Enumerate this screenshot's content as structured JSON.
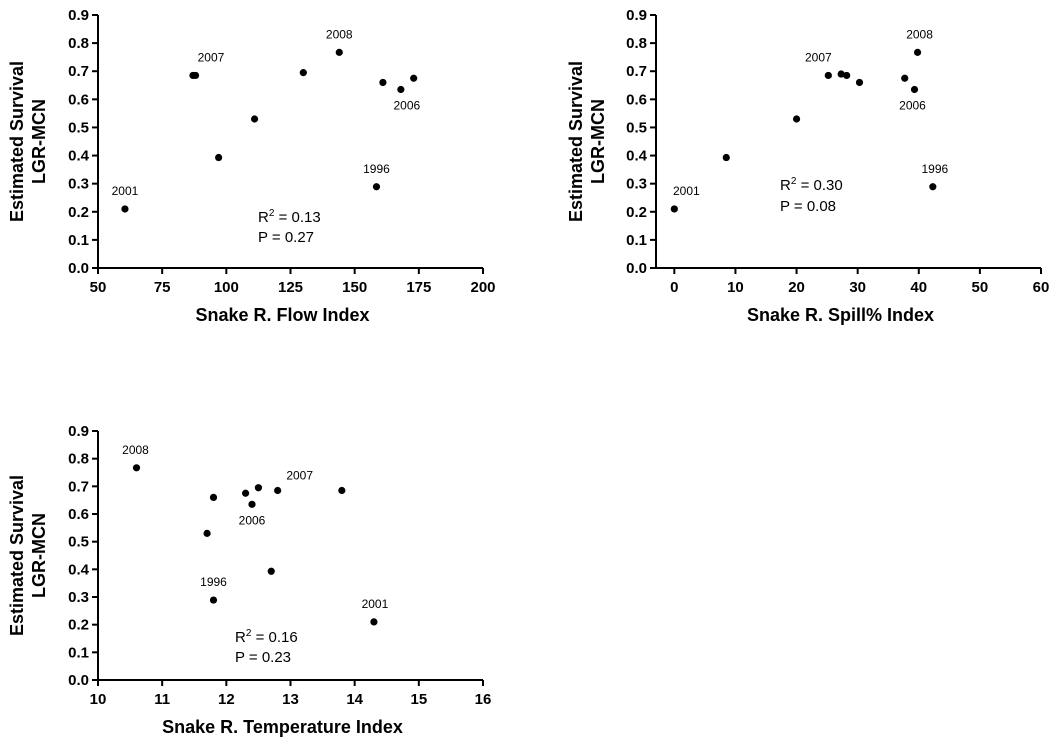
{
  "chart_data": [
    {
      "type": "scatter",
      "xlabel": "Snake R. Flow Index",
      "ylabel": [
        "Estimated Survival",
        "LGR-MCN"
      ],
      "xlim": [
        50,
        200
      ],
      "ylim": [
        0,
        0.9
      ],
      "xticks": [
        "50",
        "75",
        "100",
        "125",
        "150",
        "175",
        "200"
      ],
      "yticks": [
        "0.0",
        "0.1",
        "0.2",
        "0.3",
        "0.4",
        "0.5",
        "0.6",
        "0.7",
        "0.8",
        "0.9"
      ],
      "stats": {
        "r2_label": "R",
        "r2_sup": "2",
        "r2_value": " = 0.13",
        "p_text": "P = 0.27"
      },
      "points": [
        {
          "x": 60.5,
          "y": 0.21,
          "label": "2001"
        },
        {
          "x": 87,
          "y": 0.685,
          "label": "2007"
        },
        {
          "x": 88,
          "y": 0.685
        },
        {
          "x": 97,
          "y": 0.393
        },
        {
          "x": 111,
          "y": 0.53
        },
        {
          "x": 130,
          "y": 0.695
        },
        {
          "x": 144,
          "y": 0.767,
          "label": "2008"
        },
        {
          "x": 158.5,
          "y": 0.289,
          "label": "1996"
        },
        {
          "x": 161,
          "y": 0.66
        },
        {
          "x": 168,
          "y": 0.635,
          "label": "2006"
        },
        {
          "x": 173,
          "y": 0.675
        }
      ]
    },
    {
      "type": "scatter",
      "xlabel": "Snake R. Spill% Index",
      "ylabel": [
        "Estimated Survival",
        "LGR-MCN"
      ],
      "xlim": [
        -3,
        60
      ],
      "ylim": [
        0,
        0.9
      ],
      "xticks": [
        "0",
        "10",
        "20",
        "30",
        "40",
        "50",
        "60"
      ],
      "yticks": [
        "0.0",
        "0.1",
        "0.2",
        "0.3",
        "0.4",
        "0.5",
        "0.6",
        "0.7",
        "0.8",
        "0.9"
      ],
      "stats": {
        "r2_label": "R",
        "r2_sup": "2",
        "r2_value": " = 0.30",
        "p_text": "P = 0.08"
      },
      "points": [
        {
          "x": 0,
          "y": 0.21,
          "label": "2001"
        },
        {
          "x": 8.5,
          "y": 0.393
        },
        {
          "x": 20,
          "y": 0.53
        },
        {
          "x": 25.2,
          "y": 0.685,
          "label": "2007"
        },
        {
          "x": 27.3,
          "y": 0.69
        },
        {
          "x": 28.2,
          "y": 0.685
        },
        {
          "x": 30.3,
          "y": 0.66
        },
        {
          "x": 37.7,
          "y": 0.675
        },
        {
          "x": 39.3,
          "y": 0.635,
          "label": "2006"
        },
        {
          "x": 39.8,
          "y": 0.767,
          "label": "2008"
        },
        {
          "x": 42.3,
          "y": 0.289,
          "label": "1996"
        }
      ]
    },
    {
      "type": "scatter",
      "xlabel": "Snake R. Temperature Index",
      "ylabel": [
        "Estimated Survival",
        "LGR-MCN"
      ],
      "xlim": [
        10,
        16
      ],
      "ylim": [
        0,
        0.9
      ],
      "xticks": [
        "10",
        "11",
        "12",
        "13",
        "14",
        "15",
        "16"
      ],
      "yticks": [
        "0.0",
        "0.1",
        "0.2",
        "0.3",
        "0.4",
        "0.5",
        "0.6",
        "0.7",
        "0.8",
        "0.9"
      ],
      "stats": {
        "r2_label": "R",
        "r2_sup": "2",
        "r2_value": " = 0.16",
        "p_text": "P = 0.23"
      },
      "points": [
        {
          "x": 10.6,
          "y": 0.767,
          "label": "2008"
        },
        {
          "x": 11.7,
          "y": 0.53
        },
        {
          "x": 11.8,
          "y": 0.66
        },
        {
          "x": 11.8,
          "y": 0.289,
          "label": "1996"
        },
        {
          "x": 12.3,
          "y": 0.675
        },
        {
          "x": 12.4,
          "y": 0.635,
          "label": "2006"
        },
        {
          "x": 12.5,
          "y": 0.695
        },
        {
          "x": 12.7,
          "y": 0.393
        },
        {
          "x": 12.8,
          "y": 0.685,
          "label": "2007"
        },
        {
          "x": 13.8,
          "y": 0.685
        },
        {
          "x": 14.3,
          "y": 0.21,
          "label": "2001"
        }
      ]
    }
  ]
}
